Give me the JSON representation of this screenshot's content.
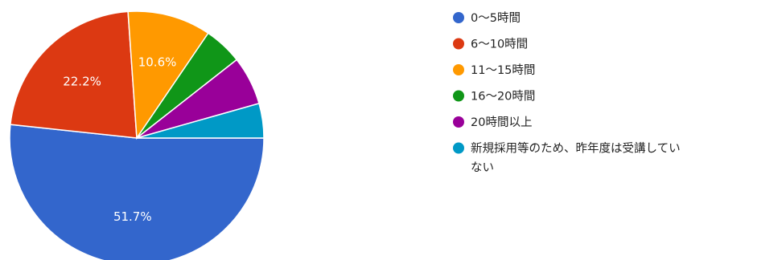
{
  "chart_data": {
    "type": "pie",
    "start_angle_deg": 90,
    "direction": "clockwise",
    "slices": [
      {
        "label": "0〜5時間",
        "value": 51.7,
        "color": "#3366cc",
        "data_label": "51.7%"
      },
      {
        "label": "6〜10時間",
        "value": 22.2,
        "color": "#dc3912",
        "data_label": "22.2%"
      },
      {
        "label": "11〜15時間",
        "value": 10.6,
        "color": "#ff9900",
        "data_label": "10.6%"
      },
      {
        "label": "16〜20時間",
        "value": 4.9,
        "color": "#109618",
        "data_label": ""
      },
      {
        "label": "20時間以上",
        "value": 6.2,
        "color": "#990099",
        "data_label": ""
      },
      {
        "label": "新規採用等のため、昨年度は受講していない",
        "label_lines": [
          "新規採用等のため、昨年度は受講してい",
          "ない"
        ],
        "value": 4.4,
        "color": "#0099c6",
        "data_label": ""
      }
    ],
    "legend_position": "right"
  }
}
